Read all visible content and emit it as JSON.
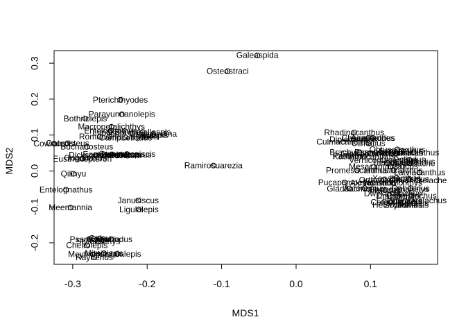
{
  "chart_data": {
    "type": "scatter",
    "xlabel": "MDS1",
    "ylabel": "MDS2",
    "xlim": [
      -0.325,
      0.19
    ],
    "ylim": [
      -0.26,
      0.335
    ],
    "xticks": [
      -0.3,
      -0.2,
      -0.1,
      0.0,
      0.1
    ],
    "xtick_labels": [
      "-0.3",
      "-0.2",
      "-0.1",
      "0.0",
      "0.1"
    ],
    "yticks": [
      -0.2,
      -0.1,
      0.0,
      0.1,
      0.2,
      0.3
    ],
    "ytick_labels": [
      "-0.2",
      "-0.1",
      "0.0",
      "0.1",
      "0.2",
      "0.3"
    ],
    "grid": false,
    "points": [
      {
        "label": "Galeaspida",
        "x": -0.052,
        "y": 0.322
      },
      {
        "label": "Osteostraci",
        "x": -0.092,
        "y": 0.278
      },
      {
        "label": "Pterichthyodes",
        "x": -0.236,
        "y": 0.198
      },
      {
        "label": "Parayunnanolepis",
        "x": -0.234,
        "y": 0.158
      },
      {
        "label": "Bothriolepis",
        "x": -0.283,
        "y": 0.146
      },
      {
        "label": "Macropetalichthys",
        "x": -0.248,
        "y": 0.123
      },
      {
        "label": "Entelognathus",
        "x": -0.249,
        "y": 0.112
      },
      {
        "label": "Brindabellaspis",
        "x": -0.206,
        "y": 0.108
      },
      {
        "label": "Lunaspis",
        "x": -0.251,
        "y": 0.107
      },
      {
        "label": "Gemuendina",
        "x": -0.192,
        "y": 0.103
      },
      {
        "label": "Romundina",
        "x": -0.263,
        "y": 0.095
      },
      {
        "label": "Campbellodus",
        "x": -0.229,
        "y": 0.093
      },
      {
        "label": "Sigaspis",
        "x": -0.193,
        "y": 0.099
      },
      {
        "label": "Jagorina",
        "x": -0.206,
        "y": 0.095
      },
      {
        "label": "Coccosteus",
        "x": -0.307,
        "y": 0.077
      },
      {
        "label": "Buchanosteus",
        "x": -0.281,
        "y": 0.067
      },
      {
        "label": "Dicksonosteus",
        "x": -0.269,
        "y": 0.044
      },
      {
        "label": "Cowralepis",
        "x": -0.325,
        "y": 0.076
      },
      {
        "label": "Eastmanosteus",
        "x": -0.248,
        "y": 0.046
      },
      {
        "label": "Dunkleosteus",
        "x": -0.228,
        "y": 0.045
      },
      {
        "label": "Incisoscutum",
        "x": -0.24,
        "y": 0.043
      },
      {
        "label": "Compagopiscis",
        "x": -0.227,
        "y": 0.047
      },
      {
        "label": "Gogonasus",
        "x": -0.283,
        "y": 0.037
      },
      {
        "label": "Holonema",
        "x": -0.236,
        "y": 0.045
      },
      {
        "label": "Eusthenopteron",
        "x": -0.287,
        "y": 0.034
      },
      {
        "label": "Qilinyu",
        "x": -0.299,
        "y": -0.008
      },
      {
        "label": "Entelognathus",
        "x": -0.309,
        "y": -0.052
      },
      {
        "label": "Meemannia",
        "x": -0.303,
        "y": -0.102
      },
      {
        "label": "Janusiscus",
        "x": -0.212,
        "y": -0.082
      },
      {
        "label": "Ligulalepis",
        "x": -0.211,
        "y": -0.107
      },
      {
        "label": "Ramirosuarezia",
        "x": -0.111,
        "y": 0.015
      },
      {
        "label": "Guiyu",
        "x": -0.264,
        "y": -0.188
      },
      {
        "label": "Psarolepis",
        "x": -0.278,
        "y": -0.19
      },
      {
        "label": "Achoania",
        "x": -0.259,
        "y": -0.19
      },
      {
        "label": "Onychodus",
        "x": -0.248,
        "y": -0.19
      },
      {
        "label": "Styloichthys",
        "x": -0.266,
        "y": -0.196
      },
      {
        "label": "Cheirolepis",
        "x": -0.281,
        "y": -0.207
      },
      {
        "label": "Mimipiscis",
        "x": -0.258,
        "y": -0.229
      },
      {
        "label": "Moythomasia",
        "x": -0.273,
        "y": -0.232
      },
      {
        "label": "Raynerius",
        "x": -0.271,
        "y": -0.241
      },
      {
        "label": "Howqualepis",
        "x": -0.24,
        "y": -0.231
      },
      {
        "label": "Rhadinacanthus",
        "x": 0.078,
        "y": 0.107
      },
      {
        "label": "Diplacanthus",
        "x": 0.077,
        "y": 0.088
      },
      {
        "label": "Culmacanthus",
        "x": 0.063,
        "y": 0.081
      },
      {
        "label": "Cheiracanthus",
        "x": 0.097,
        "y": 0.092
      },
      {
        "label": "Acanthodes",
        "x": 0.103,
        "y": 0.092
      },
      {
        "label": "Climatius",
        "x": 0.097,
        "y": 0.077
      },
      {
        "label": "Ptomacanthus",
        "x": 0.114,
        "y": 0.052
      },
      {
        "label": "Brachyacanthus",
        "x": 0.085,
        "y": 0.052
      },
      {
        "label": "Euthacanthus",
        "x": 0.158,
        "y": 0.051
      },
      {
        "label": "Ischnacanthus",
        "x": 0.134,
        "y": 0.05
      },
      {
        "label": "Obtusacanthus",
        "x": 0.136,
        "y": 0.06
      },
      {
        "label": "Lupopsyrus",
        "x": 0.141,
        "y": 0.056
      },
      {
        "label": "Gladiobranchus",
        "x": 0.099,
        "y": 0.048
      },
      {
        "label": "Kathemacanthus",
        "x": 0.091,
        "y": 0.04
      },
      {
        "label": "Parexus",
        "x": 0.07,
        "y": 0.042
      },
      {
        "label": "Vernicomacanthus",
        "x": 0.117,
        "y": 0.03
      },
      {
        "label": "Doliodus",
        "x": 0.152,
        "y": 0.032
      },
      {
        "label": "Tamiobatis",
        "x": 0.129,
        "y": 0.023
      },
      {
        "label": "Cladoselache",
        "x": 0.153,
        "y": 0.021
      },
      {
        "label": "Cobelodus",
        "x": 0.16,
        "y": 0.026
      },
      {
        "label": "Ozarcus",
        "x": 0.143,
        "y": 0.013
      },
      {
        "label": "Promesacanthus",
        "x": 0.082,
        "y": 0.002
      },
      {
        "label": "Mesacanthus",
        "x": 0.104,
        "y": 0.012
      },
      {
        "label": "Homalacanthus",
        "x": 0.131,
        "y": 0.002
      },
      {
        "label": "Latviacanthus",
        "x": 0.166,
        "y": -0.004
      },
      {
        "label": "Pucapampella",
        "x": 0.065,
        "y": -0.032
      },
      {
        "label": "Akmonistion",
        "x": 0.103,
        "y": -0.033
      },
      {
        "label": "Orthacanthus",
        "x": 0.118,
        "y": -0.025
      },
      {
        "label": "Xenacanthus",
        "x": 0.135,
        "y": -0.02
      },
      {
        "label": "Tristychius",
        "x": 0.152,
        "y": -0.022
      },
      {
        "label": "Onychoselache",
        "x": 0.164,
        "y": -0.026
      },
      {
        "label": "Hamiltonichthys",
        "x": 0.13,
        "y": -0.033
      },
      {
        "label": "Gladbachus",
        "x": 0.071,
        "y": -0.049
      },
      {
        "label": "Acronemus",
        "x": 0.092,
        "y": -0.048
      },
      {
        "label": "Debeerius",
        "x": 0.154,
        "y": -0.048
      },
      {
        "label": "Chondrenchelys",
        "x": 0.138,
        "y": -0.051
      },
      {
        "label": "Helodus",
        "x": 0.12,
        "y": -0.053
      },
      {
        "label": "Dwykaselachus",
        "x": 0.13,
        "y": -0.063
      },
      {
        "label": "Dracopristis",
        "x": 0.137,
        "y": -0.07
      },
      {
        "label": "Callorhinchus",
        "x": 0.155,
        "y": -0.069
      },
      {
        "label": "Chimaera",
        "x": 0.146,
        "y": -0.084
      },
      {
        "label": "Cetorhinus",
        "x": 0.127,
        "y": -0.087
      },
      {
        "label": "Squalus",
        "x": 0.158,
        "y": -0.09
      },
      {
        "label": "Heterodontus",
        "x": 0.136,
        "y": -0.095
      },
      {
        "label": "Scyliorhinus",
        "x": 0.148,
        "y": -0.095
      },
      {
        "label": "Chlamydoselachus",
        "x": 0.155,
        "y": -0.082
      }
    ],
    "labels_shown": [
      "Galeaspida",
      "Osteostraci",
      "Pterichthyodes",
      "Parayunnanolepis",
      "Bothriolepis",
      "Coccosteus",
      "Dicksonosteus",
      "Buchanosteus",
      "Qilinyu",
      "Entelognathus",
      "Meemannia",
      "Janusiscus",
      "Ligulalepis",
      "Ramirosuarezia",
      "Guiyu",
      "Psarolepis",
      "Cheirolepis",
      "Raynerius",
      "Rhadinacanthus",
      "Pucapampella",
      "Gladbachus",
      "Diplacanthus",
      "Cheiracanthus",
      "Culmacanthus",
      "Climatius",
      "Acanthodes",
      "Brachyacanthus",
      "Parexus",
      "Promesacanthus",
      "Ptomacanthus",
      "Mesacanthus",
      "Doliodus",
      "Euthacanthus",
      "Ischnacanthus",
      "Macropetalichthys",
      "Romundina",
      "Campbellodus",
      "Gemuendina",
      "Brindabellaspis",
      "Eastmanosteus",
      "Dunkleosteus",
      "Cowralepis",
      "Mimipiscis",
      "Moythomasia",
      "Onychodus",
      "Achoania"
    ]
  }
}
